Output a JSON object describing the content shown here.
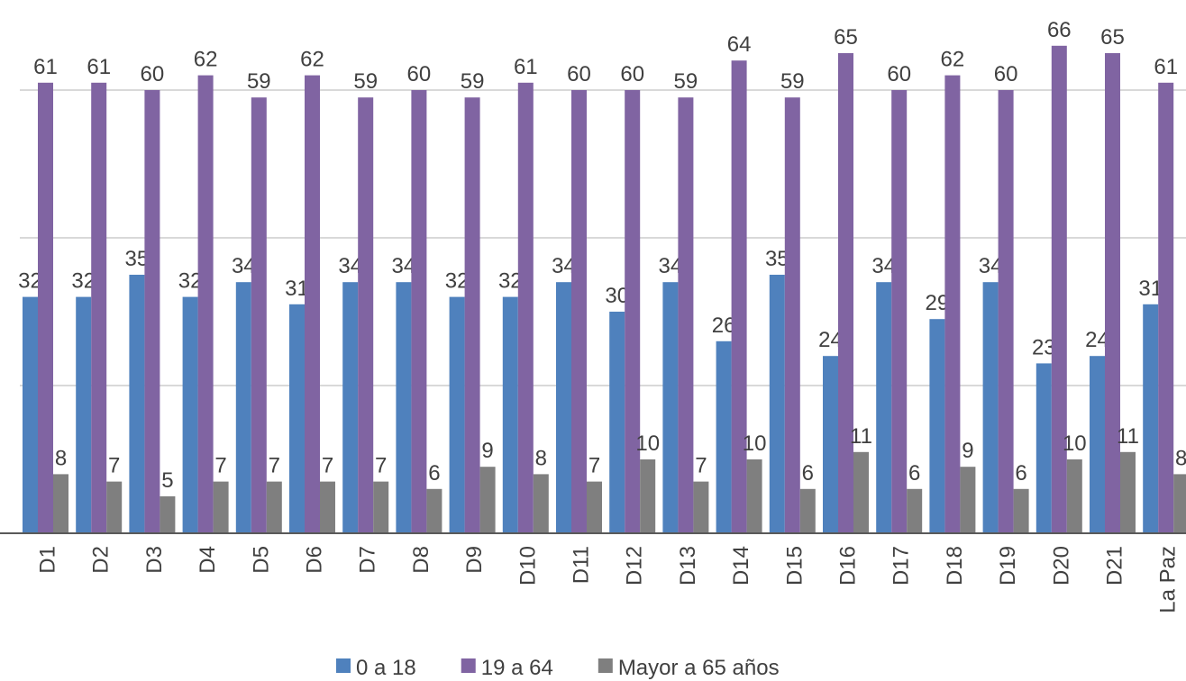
{
  "chart_data": {
    "type": "bar",
    "categories": [
      "D1",
      "D2",
      "D3",
      "D4",
      "D5",
      "D6",
      "D7",
      "D8",
      "D9",
      "D10",
      "D11",
      "D12",
      "D13",
      "D14",
      "D15",
      "D16",
      "D17",
      "D18",
      "D19",
      "D20",
      "D21",
      "La Paz"
    ],
    "series": [
      {
        "name": "0 a 18",
        "color": "#4f81bd",
        "values": [
          32,
          32,
          35,
          32,
          34,
          31,
          34,
          34,
          32,
          32,
          34,
          30,
          34,
          26,
          35,
          24,
          34,
          29,
          34,
          23,
          24,
          31
        ]
      },
      {
        "name": "19 a 64",
        "color": "#8064a2",
        "values": [
          61,
          61,
          60,
          62,
          59,
          62,
          59,
          60,
          59,
          61,
          60,
          60,
          59,
          64,
          59,
          65,
          60,
          62,
          60,
          66,
          65,
          61
        ]
      },
      {
        "name": "Mayor a 65 años",
        "color": "#7f7f7f",
        "values": [
          8,
          7,
          5,
          7,
          7,
          7,
          7,
          6,
          9,
          8,
          7,
          10,
          7,
          10,
          6,
          11,
          6,
          9,
          6,
          10,
          11,
          8
        ]
      }
    ],
    "ylim": [
      0,
      72
    ],
    "yticks": [
      0,
      20,
      40,
      60
    ],
    "grid": true,
    "legend": "bottom"
  }
}
